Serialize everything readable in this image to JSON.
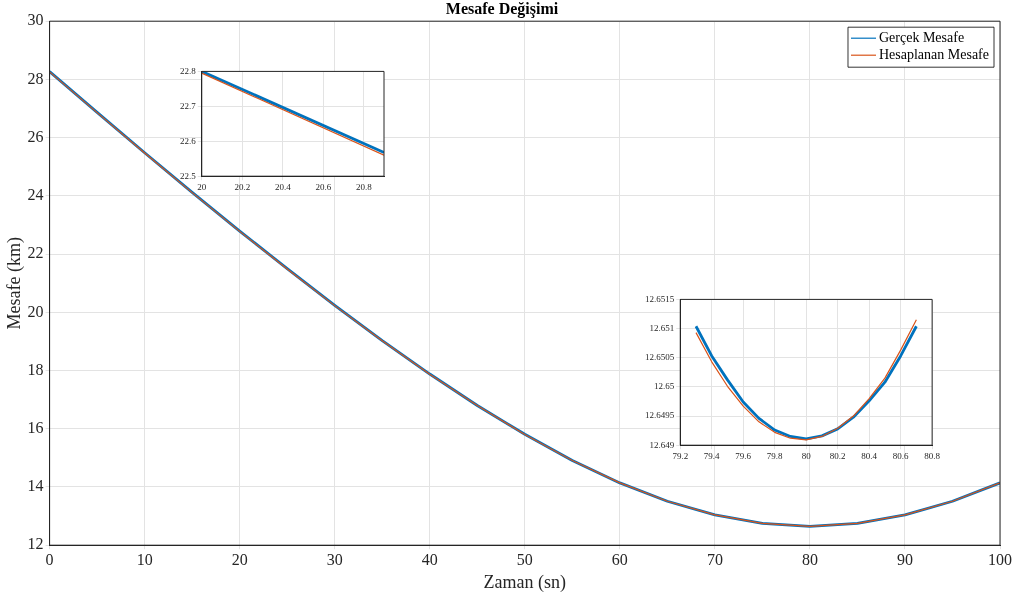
{
  "chart_data": [
    {
      "type": "line",
      "title": "Mesafe Değişimi",
      "xlabel": "Zaman (sn)",
      "ylabel": "Mesafe (km)",
      "x": [
        0,
        5,
        10,
        15,
        20,
        25,
        30,
        35,
        40,
        45,
        50,
        55,
        60,
        65,
        70,
        75,
        80,
        85,
        90,
        95,
        100
      ],
      "series": [
        {
          "name": "Gerçek Mesafe",
          "color": "#0072bd",
          "values": [
            28.27,
            26.87,
            25.48,
            24.12,
            22.79,
            21.5,
            20.24,
            19.03,
            17.88,
            16.8,
            15.81,
            14.91,
            14.14,
            13.51,
            13.04,
            12.75,
            12.65,
            12.75,
            13.04,
            13.51,
            14.14
          ]
        },
        {
          "name": "Hesaplanan Mesafe",
          "color": "#d95319",
          "values": [
            28.26,
            26.86,
            25.47,
            24.11,
            22.78,
            21.49,
            20.23,
            19.02,
            17.87,
            16.8,
            15.8,
            14.91,
            14.14,
            13.51,
            13.04,
            12.75,
            12.65,
            12.75,
            13.04,
            13.51,
            14.14
          ]
        }
      ],
      "xlim": [
        0,
        100
      ],
      "xticks": [
        0,
        10,
        20,
        30,
        40,
        50,
        60,
        70,
        80,
        90,
        100
      ],
      "ylim": [
        12,
        30
      ],
      "yticks": [
        12,
        14,
        16,
        18,
        20,
        22,
        24,
        26,
        28,
        30
      ],
      "grid": true,
      "legend": "top right",
      "marker": "none",
      "line_style": "solid"
    },
    {
      "type": "line",
      "x": [
        20,
        20.9
      ],
      "series": [
        {
          "color": "#0072bd",
          "values": [
            22.8,
            22.568
          ]
        },
        {
          "color": "#d95319",
          "values": [
            22.795,
            22.56
          ]
        }
      ],
      "xlim": [
        20,
        20.9
      ],
      "xticks": [
        20,
        20.2,
        20.4,
        20.6,
        20.8
      ],
      "ylim": [
        22.5,
        22.8
      ],
      "yticks": [
        22.5,
        22.6,
        22.7,
        22.8
      ],
      "grid": true,
      "marker": "none",
      "line_style": "solid"
    },
    {
      "type": "line",
      "x": [
        79.3,
        79.4,
        79.5,
        79.6,
        79.7,
        79.8,
        79.9,
        80,
        80.1,
        80.2,
        80.3,
        80.4,
        80.5,
        80.6,
        80.7
      ],
      "series": [
        {
          "color": "#0072bd",
          "values": [
            12.65104,
            12.65053,
            12.65012,
            12.64974,
            12.64946,
            12.64926,
            12.64915,
            12.64911,
            12.64916,
            12.64928,
            12.64948,
            12.64976,
            12.65008,
            12.65053,
            12.65104
          ]
        },
        {
          "color": "#d95319",
          "values": [
            12.65093,
            12.65043,
            12.65001,
            12.64967,
            12.6494,
            12.64922,
            12.64912,
            12.64909,
            12.64915,
            12.64929,
            12.6495,
            12.6498,
            12.65015,
            12.65063,
            12.65115
          ]
        }
      ],
      "xlim": [
        79.2,
        80.8
      ],
      "xticks": [
        79.2,
        79.4,
        79.6,
        79.8,
        80,
        80.2,
        80.4,
        80.6,
        80.8
      ],
      "ylim": [
        12.649,
        12.6515
      ],
      "yticks": [
        12.649,
        12.6495,
        12.65,
        12.6505,
        12.651,
        12.6515
      ],
      "grid": true,
      "marker": "none",
      "line_style": "solid"
    }
  ]
}
